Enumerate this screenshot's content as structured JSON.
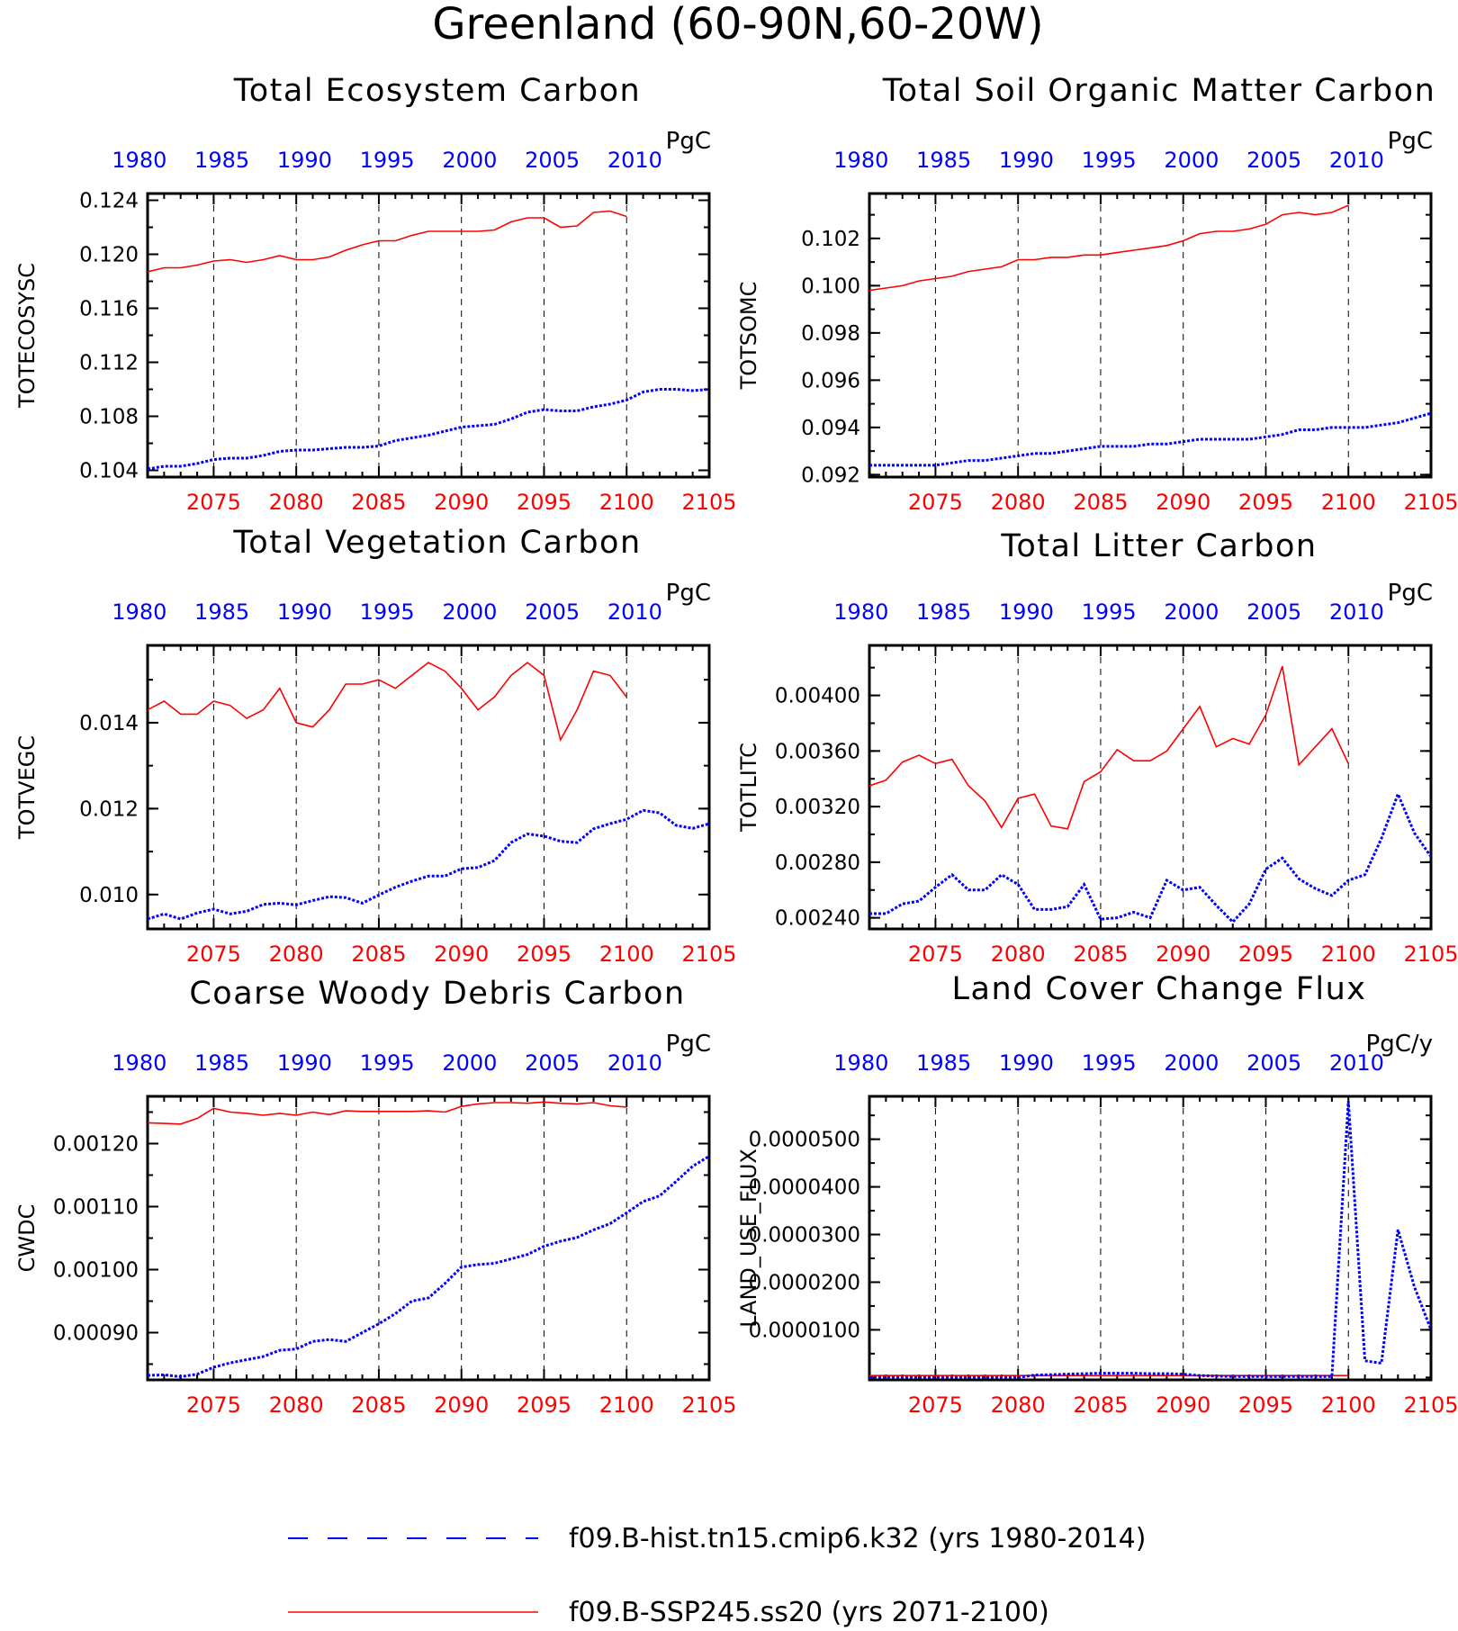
{
  "page_title": "Greenland (60-90N,60-20W)",
  "colors": {
    "hist_series": "#0000ff",
    "ssp_series": "#ff0000",
    "top_axis_labels": "#0000ff",
    "bottom_axis_labels": "#ff0000",
    "frame": "#000000"
  },
  "axes": {
    "top_year_ticks": [
      "1980",
      "1985",
      "1990",
      "1995",
      "2000",
      "2005",
      "2010"
    ],
    "bottom_year_ticks": [
      "2075",
      "2080",
      "2085",
      "2090",
      "2095",
      "2100",
      "2105"
    ]
  },
  "legend": {
    "items": [
      {
        "label": "f09.B-hist.tn15.cmip6.k32 (yrs 1980-2014)",
        "color": "#0000ff",
        "style": "dashed"
      },
      {
        "label": "f09.B-SSP245.ss20 (yrs 2071-2100)",
        "color": "#ff0000",
        "style": "solid"
      }
    ]
  },
  "chart_data": [
    {
      "type": "line",
      "title": "Total Ecosystem Carbon",
      "ylabel": "TOTECOSYSC",
      "units": "PgC",
      "ylim": [
        0.1035,
        0.1245
      ],
      "yticks": [
        "0.104",
        "0.108",
        "0.112",
        "0.116",
        "0.120",
        "0.124"
      ],
      "series": [
        {
          "name": "f09.B-SSP245.ss20 (yrs 2071-2100)",
          "x": [
            2071,
            2072,
            2073,
            2074,
            2075,
            2076,
            2077,
            2078,
            2079,
            2080,
            2081,
            2082,
            2083,
            2084,
            2085,
            2086,
            2087,
            2088,
            2089,
            2090,
            2091,
            2092,
            2093,
            2094,
            2095,
            2096,
            2097,
            2098,
            2099,
            2100
          ],
          "values": [
            0.1187,
            0.119,
            0.119,
            0.1192,
            0.1195,
            0.1196,
            0.1194,
            0.1196,
            0.1199,
            0.1196,
            0.1196,
            0.1198,
            0.1203,
            0.1207,
            0.121,
            0.121,
            0.1214,
            0.1217,
            0.1217,
            0.1217,
            0.1217,
            0.1218,
            0.1224,
            0.1227,
            0.1227,
            0.122,
            0.1221,
            0.1231,
            0.1232,
            0.1228
          ]
        },
        {
          "name": "f09.B-hist.tn15.cmip6.k32 (yrs 1980-2014)",
          "x": [
            2071,
            2072,
            2073,
            2074,
            2075,
            2076,
            2077,
            2078,
            2079,
            2080,
            2081,
            2082,
            2083,
            2084,
            2085,
            2086,
            2087,
            2088,
            2089,
            2090,
            2091,
            2092,
            2093,
            2094,
            2095,
            2096,
            2097,
            2098,
            2099,
            2100,
            2101,
            2102,
            2103,
            2104,
            2105
          ],
          "values": [
            0.1041,
            0.1043,
            0.1043,
            0.1045,
            0.1048,
            0.1049,
            0.1049,
            0.1051,
            0.1054,
            0.1055,
            0.1055,
            0.1056,
            0.1057,
            0.1057,
            0.1058,
            0.1062,
            0.1064,
            0.1066,
            0.1069,
            0.1072,
            0.1073,
            0.1074,
            0.1078,
            0.1083,
            0.1085,
            0.1084,
            0.1084,
            0.1087,
            0.1089,
            0.1092,
            0.1098,
            0.11,
            0.11,
            0.1099,
            0.11
          ]
        }
      ]
    },
    {
      "type": "line",
      "title": "Total Soil Organic Matter Carbon",
      "ylabel": "TOTSOMC",
      "units": "PgC",
      "ylim": [
        0.0919,
        0.1039
      ],
      "yticks": [
        "0.092",
        "0.094",
        "0.096",
        "0.098",
        "0.100",
        "0.102"
      ],
      "series": [
        {
          "name": "f09.B-SSP245.ss20 (yrs 2071-2100)",
          "x": [
            2071,
            2072,
            2073,
            2074,
            2075,
            2076,
            2077,
            2078,
            2079,
            2080,
            2081,
            2082,
            2083,
            2084,
            2085,
            2086,
            2087,
            2088,
            2089,
            2090,
            2091,
            2092,
            2093,
            2094,
            2095,
            2096,
            2097,
            2098,
            2099,
            2100
          ],
          "values": [
            0.0998,
            0.0999,
            0.1,
            0.1002,
            0.1003,
            0.1004,
            0.1006,
            0.1007,
            0.1008,
            0.1011,
            0.1011,
            0.1012,
            0.1012,
            0.1013,
            0.1013,
            0.1014,
            0.1015,
            0.1016,
            0.1017,
            0.1019,
            0.1022,
            0.1023,
            0.1023,
            0.1024,
            0.1026,
            0.103,
            0.1031,
            0.103,
            0.1031,
            0.1034
          ]
        },
        {
          "name": "f09.B-hist.tn15.cmip6.k32 (yrs 1980-2014)",
          "x": [
            2071,
            2072,
            2073,
            2074,
            2075,
            2076,
            2077,
            2078,
            2079,
            2080,
            2081,
            2082,
            2083,
            2084,
            2085,
            2086,
            2087,
            2088,
            2089,
            2090,
            2091,
            2092,
            2093,
            2094,
            2095,
            2096,
            2097,
            2098,
            2099,
            2100,
            2101,
            2102,
            2103,
            2104,
            2105
          ],
          "values": [
            0.0924,
            0.0924,
            0.0924,
            0.0924,
            0.0924,
            0.0925,
            0.0926,
            0.0926,
            0.0927,
            0.0928,
            0.0929,
            0.0929,
            0.093,
            0.0931,
            0.0932,
            0.0932,
            0.0932,
            0.0933,
            0.0933,
            0.0934,
            0.0935,
            0.0935,
            0.0935,
            0.0935,
            0.0936,
            0.0937,
            0.0939,
            0.0939,
            0.094,
            0.094,
            0.094,
            0.0941,
            0.0942,
            0.0944,
            0.0946
          ]
        }
      ]
    },
    {
      "type": "line",
      "title": "Total Vegetation Carbon",
      "ylabel": "TOTVEGC",
      "units": "PgC",
      "ylim": [
        0.0092,
        0.0158
      ],
      "yticks": [
        "0.010",
        "0.012",
        "0.014"
      ],
      "series": [
        {
          "name": "f09.B-SSP245.ss20 (yrs 2071-2100)",
          "x": [
            2071,
            2072,
            2073,
            2074,
            2075,
            2076,
            2077,
            2078,
            2079,
            2080,
            2081,
            2082,
            2083,
            2084,
            2085,
            2086,
            2087,
            2088,
            2089,
            2090,
            2091,
            2092,
            2093,
            2094,
            2095,
            2096,
            2097,
            2098,
            2099,
            2100
          ],
          "values": [
            0.0143,
            0.0145,
            0.0142,
            0.0142,
            0.0145,
            0.0144,
            0.0141,
            0.0143,
            0.0148,
            0.014,
            0.0139,
            0.0143,
            0.0149,
            0.0149,
            0.015,
            0.0148,
            0.0151,
            0.0154,
            0.0152,
            0.0148,
            0.0143,
            0.0146,
            0.0151,
            0.0154,
            0.0151,
            0.0136,
            0.0143,
            0.0152,
            0.0151,
            0.0146
          ]
        },
        {
          "name": "f09.B-hist.tn15.cmip6.k32 (yrs 1980-2014)",
          "x": [
            2071,
            2072,
            2073,
            2074,
            2075,
            2076,
            2077,
            2078,
            2079,
            2080,
            2081,
            2082,
            2083,
            2084,
            2085,
            2086,
            2087,
            2088,
            2089,
            2090,
            2091,
            2092,
            2093,
            2094,
            2095,
            2096,
            2097,
            2098,
            2099,
            2100,
            2101,
            2102,
            2103,
            2104,
            2105
          ],
          "values": [
            0.00943,
            0.00955,
            0.00943,
            0.00957,
            0.00966,
            0.00955,
            0.00961,
            0.00977,
            0.0098,
            0.00976,
            0.00986,
            0.00995,
            0.00993,
            0.0098,
            0.00999,
            0.01017,
            0.01031,
            0.01043,
            0.01043,
            0.0106,
            0.01063,
            0.01079,
            0.01121,
            0.01141,
            0.01136,
            0.01124,
            0.01121,
            0.01153,
            0.01165,
            0.01175,
            0.01196,
            0.0119,
            0.01161,
            0.01154,
            0.01165
          ]
        }
      ]
    },
    {
      "type": "line",
      "title": "Total Litter Carbon",
      "ylabel": "TOTLITC",
      "units": "PgC",
      "ylim": [
        0.00232,
        0.00436
      ],
      "yticks": [
        "0.00240",
        "0.00280",
        "0.00320",
        "0.00360",
        "0.00400"
      ],
      "series": [
        {
          "name": "f09.B-SSP245.ss20 (yrs 2071-2100)",
          "x": [
            2071,
            2072,
            2073,
            2074,
            2075,
            2076,
            2077,
            2078,
            2079,
            2080,
            2081,
            2082,
            2083,
            2084,
            2085,
            2086,
            2087,
            2088,
            2089,
            2090,
            2091,
            2092,
            2093,
            2094,
            2095,
            2096,
            2097,
            2098,
            2099,
            2100
          ],
          "values": [
            0.00335,
            0.00339,
            0.00352,
            0.00357,
            0.00351,
            0.00354,
            0.00335,
            0.00324,
            0.00305,
            0.00326,
            0.00329,
            0.00306,
            0.00304,
            0.00338,
            0.00345,
            0.00361,
            0.00353,
            0.00353,
            0.0036,
            0.00376,
            0.00392,
            0.00363,
            0.00369,
            0.00365,
            0.00386,
            0.00421,
            0.0035,
            0.00363,
            0.00376,
            0.00351
          ]
        },
        {
          "name": "f09.B-hist.tn15.cmip6.k32 (yrs 1980-2014)",
          "x": [
            2071,
            2072,
            2073,
            2074,
            2075,
            2076,
            2077,
            2078,
            2079,
            2080,
            2081,
            2082,
            2083,
            2084,
            2085,
            2086,
            2087,
            2088,
            2089,
            2090,
            2091,
            2092,
            2093,
            2094,
            2095,
            2096,
            2097,
            2098,
            2099,
            2100,
            2101,
            2102,
            2103,
            2104,
            2105
          ],
          "values": [
            0.00243,
            0.00243,
            0.0025,
            0.00252,
            0.00262,
            0.00271,
            0.0026,
            0.0026,
            0.00271,
            0.00264,
            0.00246,
            0.00246,
            0.00248,
            0.00264,
            0.00239,
            0.0024,
            0.00244,
            0.0024,
            0.00267,
            0.0026,
            0.00262,
            0.00249,
            0.00237,
            0.0025,
            0.00275,
            0.00283,
            0.00268,
            0.00261,
            0.00256,
            0.00267,
            0.00271,
            0.00297,
            0.00329,
            0.00301,
            0.00284
          ]
        }
      ]
    },
    {
      "type": "line",
      "title": "Coarse Woody Debris Carbon",
      "ylabel": "CWDC",
      "units": "PgC",
      "ylim": [
        0.000825,
        0.001275
      ],
      "yticks": [
        "0.00090",
        "0.00100",
        "0.00110",
        "0.00120"
      ],
      "series": [
        {
          "name": "f09.B-SSP245.ss20 (yrs 2071-2100)",
          "x": [
            2071,
            2072,
            2073,
            2074,
            2075,
            2076,
            2077,
            2078,
            2079,
            2080,
            2081,
            2082,
            2083,
            2084,
            2085,
            2086,
            2087,
            2088,
            2089,
            2090,
            2091,
            2092,
            2093,
            2094,
            2095,
            2096,
            2097,
            2098,
            2099,
            2100
          ],
          "values": [
            0.001233,
            0.001232,
            0.001231,
            0.00124,
            0.001256,
            0.00125,
            0.001248,
            0.001245,
            0.001248,
            0.001245,
            0.00125,
            0.001246,
            0.001252,
            0.001251,
            0.001251,
            0.001251,
            0.001251,
            0.001252,
            0.00125,
            0.001259,
            0.001263,
            0.001265,
            0.001265,
            0.001264,
            0.001266,
            0.001264,
            0.001263,
            0.001265,
            0.00126,
            0.001258
          ]
        },
        {
          "name": "f09.B-hist.tn15.cmip6.k32 (yrs 1980-2014)",
          "x": [
            2071,
            2072,
            2073,
            2074,
            2075,
            2076,
            2077,
            2078,
            2079,
            2080,
            2081,
            2082,
            2083,
            2084,
            2085,
            2086,
            2087,
            2088,
            2089,
            2090,
            2091,
            2092,
            2093,
            2094,
            2095,
            2096,
            2097,
            2098,
            2099,
            2100,
            2101,
            2102,
            2103,
            2104,
            2105
          ],
          "values": [
            0.000832,
            0.000833,
            0.00083,
            0.000834,
            0.000845,
            0.000852,
            0.000857,
            0.000862,
            0.000872,
            0.000874,
            0.000886,
            0.000889,
            0.000886,
            0.0009,
            0.000914,
            0.00093,
            0.00095,
            0.000955,
            0.000978,
            0.001004,
            0.001008,
            0.00101,
            0.001017,
            0.001024,
            0.001037,
            0.001045,
            0.001051,
            0.001063,
            0.001073,
            0.00109,
            0.001108,
            0.001117,
            0.00114,
            0.001164,
            0.00118
          ]
        }
      ]
    },
    {
      "type": "line",
      "title": "Land Cover Change Flux",
      "ylabel": "LAND_USE_FLUX",
      "units": "PgC/y",
      "ylim": [
        -5e-07,
        5.9e-05
      ],
      "yticks": [
        "0.0000100",
        "0.0000200",
        "0.0000300",
        "0.0000400",
        "0.0000500"
      ],
      "series": [
        {
          "name": "f09.B-SSP245.ss20 (yrs 2071-2100)",
          "x": [
            2071,
            2072,
            2073,
            2074,
            2075,
            2076,
            2077,
            2078,
            2079,
            2080,
            2081,
            2082,
            2083,
            2084,
            2085,
            2086,
            2087,
            2088,
            2089,
            2090,
            2091,
            2092,
            2093,
            2094,
            2095,
            2096,
            2097,
            2098,
            2099,
            2100
          ],
          "values": [
            4e-07,
            4e-07,
            4e-07,
            4e-07,
            4e-07,
            4e-07,
            4e-07,
            4e-07,
            4e-07,
            4e-07,
            4e-07,
            4e-07,
            4e-07,
            4e-07,
            4e-07,
            4e-07,
            4e-07,
            4e-07,
            4e-07,
            4e-07,
            4e-07,
            4e-07,
            4e-07,
            4e-07,
            4e-07,
            4e-07,
            4e-07,
            4e-07,
            4e-07,
            4e-07
          ]
        },
        {
          "name": "f09.B-hist.tn15.cmip6.k32 (yrs 1980-2014)",
          "x": [
            2071,
            2072,
            2073,
            2074,
            2075,
            2076,
            2077,
            2078,
            2079,
            2080,
            2081,
            2082,
            2083,
            2084,
            2085,
            2086,
            2087,
            2088,
            2089,
            2090,
            2091,
            2092,
            2093,
            2094,
            2095,
            2096,
            2097,
            2098,
            2099,
            2100,
            2101,
            2102,
            2103,
            2104,
            2105
          ],
          "values": [
            0.0,
            0.0,
            0.0,
            0.0,
            0.0,
            0.0,
            0.0,
            0.0,
            0.0,
            0.0,
            5e-07,
            6e-07,
            7e-07,
            8e-07,
            9e-07,
            9e-07,
            9e-07,
            8e-07,
            8e-07,
            7e-07,
            4e-07,
            3e-07,
            2e-07,
            2e-07,
            2e-07,
            2e-07,
            2e-07,
            2e-07,
            2e-07,
            5.8e-05,
            3.5e-06,
            3e-06,
            3.1e-05,
            1.9e-05,
            1e-05
          ]
        }
      ]
    }
  ]
}
